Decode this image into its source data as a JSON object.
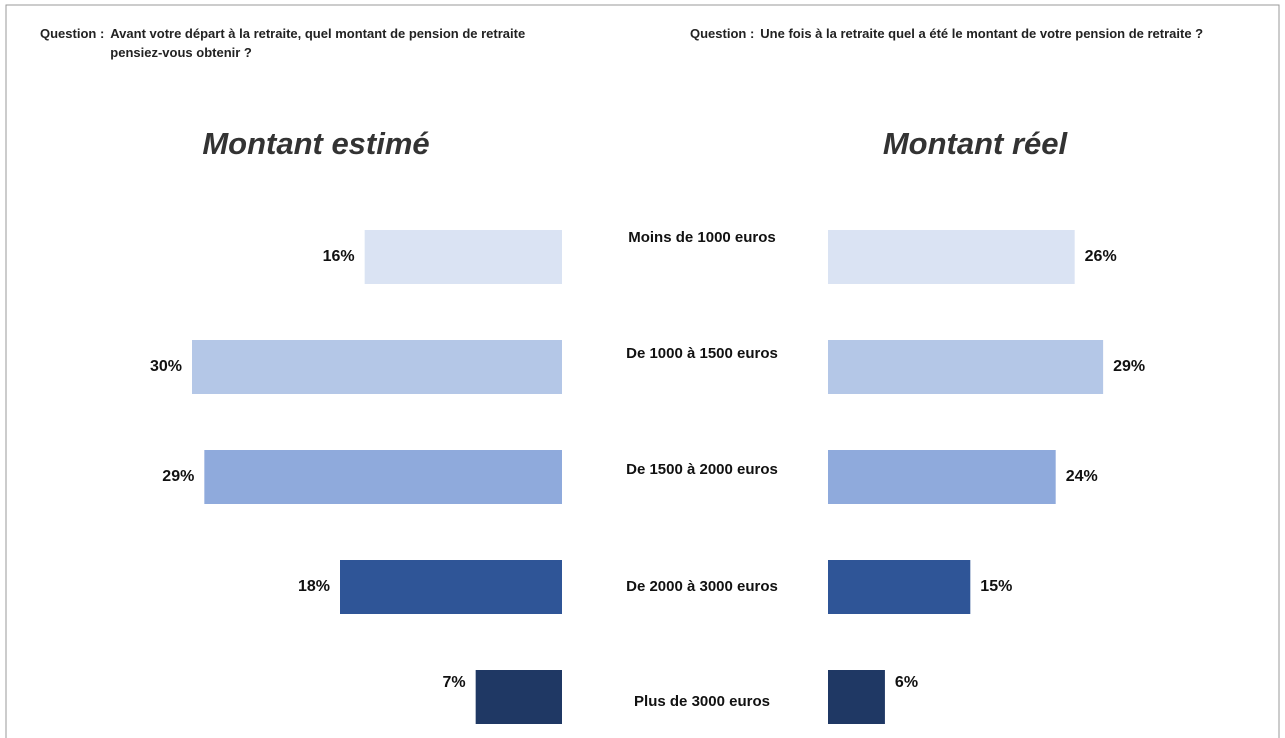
{
  "chart_data": [
    {
      "type": "bar",
      "orientation": "left",
      "question_label": "Question :",
      "question": "Avant votre départ à la retraite, quel montant de pension de retraite pensiez-vous obtenir ?",
      "title": "Montant estimé",
      "categories": [
        "Moins de 1000 euros",
        "De 1000 à 1500 euros",
        "De 1500 à 2000 euros",
        "De 2000 à 3000 euros",
        "Plus de 3000 euros"
      ],
      "values": [
        16,
        30,
        29,
        18,
        7
      ],
      "value_labels": [
        "16%",
        "30%",
        "29%",
        "18%",
        "7%"
      ],
      "colors": [
        "#dae3f3",
        "#b4c7e7",
        "#8faadc",
        "#2f5597",
        "#1f3864"
      ],
      "xlim": [
        0,
        30
      ]
    },
    {
      "type": "bar",
      "orientation": "right",
      "question_label": "Question :",
      "question": "Une fois à la retraite quel a été le montant de votre pension de retraite ?",
      "title": "Montant réel",
      "values": [
        26,
        29,
        24,
        15,
        6
      ],
      "value_labels": [
        "26%",
        "29%",
        "24%",
        "15%",
        "6%"
      ],
      "colors": [
        "#dae3f3",
        "#b4c7e7",
        "#8faadc",
        "#2f5597",
        "#1f3864"
      ],
      "xlim": [
        0,
        39
      ]
    }
  ]
}
